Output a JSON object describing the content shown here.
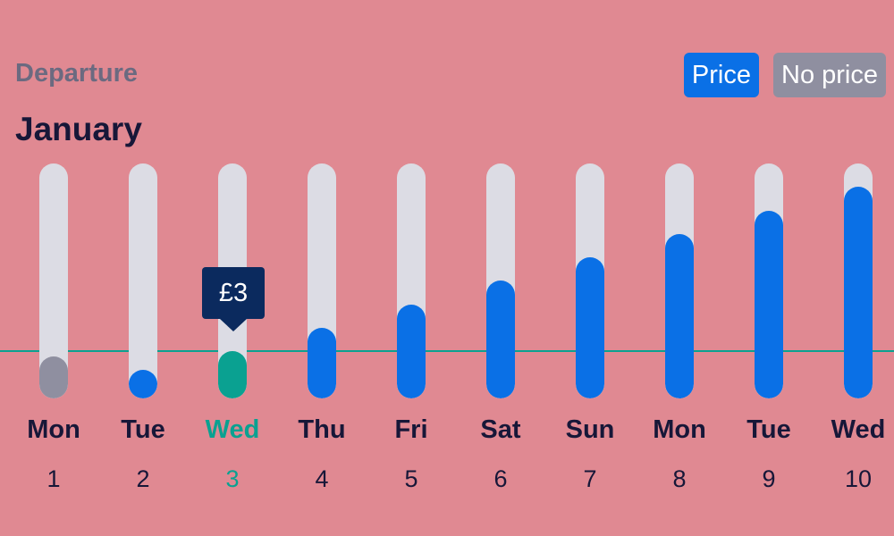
{
  "header": {
    "section_label": "Departure",
    "month": "January"
  },
  "legend": {
    "price_label": "Price",
    "no_price_label": "No price",
    "price_color": "#0a70e6",
    "no_price_color": "#8f8fa0"
  },
  "colors": {
    "selected": "#0aa191",
    "no_price": "#8f8fa0",
    "price": "#0a70e6",
    "track": "#dcdce4",
    "tooltip": "#0b2a5e"
  },
  "tooltip": {
    "text": "£3"
  },
  "days": [
    {
      "weekday": "Mon",
      "day": "1",
      "level": 0.18,
      "status": "no-price"
    },
    {
      "weekday": "Tue",
      "day": "2",
      "level": 0.1,
      "status": "price"
    },
    {
      "weekday": "Wed",
      "day": "3",
      "level": 0.2,
      "status": "selected"
    },
    {
      "weekday": "Thu",
      "day": "4",
      "level": 0.3,
      "status": "price"
    },
    {
      "weekday": "Fri",
      "day": "5",
      "level": 0.4,
      "status": "price"
    },
    {
      "weekday": "Sat",
      "day": "6",
      "level": 0.5,
      "status": "price"
    },
    {
      "weekday": "Sun",
      "day": "7",
      "level": 0.6,
      "status": "price"
    },
    {
      "weekday": "Mon",
      "day": "8",
      "level": 0.7,
      "status": "price"
    },
    {
      "weekday": "Tue",
      "day": "9",
      "level": 0.8,
      "status": "price"
    },
    {
      "weekday": "Wed",
      "day": "10",
      "level": 0.9,
      "status": "price"
    }
  ]
}
